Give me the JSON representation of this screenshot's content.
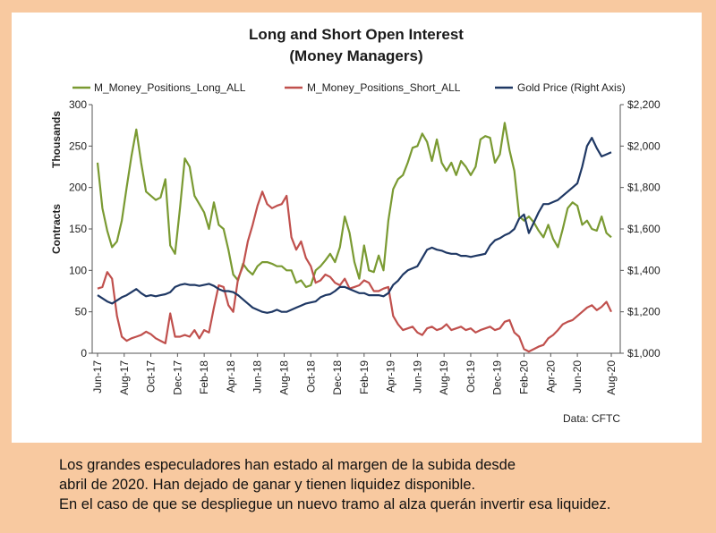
{
  "chart_data": {
    "type": "line",
    "title_line1": "Long and Short Open Interest",
    "title_line2": "(Money Managers)",
    "source": "Data: CFTC",
    "ylabel_left": "Contracts",
    "ylabel_left_units": "Thousands",
    "ylim_left": [
      0,
      300
    ],
    "ylim_right": [
      1000,
      2200
    ],
    "yticks_left": [
      "0",
      "50",
      "100",
      "150",
      "200",
      "250",
      "300"
    ],
    "yticks_right": [
      "$1,000",
      "$1,200",
      "$1,400",
      "$1,600",
      "$1,800",
      "$2,000",
      "$2,200"
    ],
    "x_start": "Jun-17",
    "x_interval_weeks": 2,
    "xtick_labels": [
      "Jun-17",
      "Aug-17",
      "Oct-17",
      "Dec-17",
      "Feb-18",
      "Apr-18",
      "Jun-18",
      "Aug-18",
      "Oct-18",
      "Dec-18",
      "Feb-19",
      "Apr-19",
      "Jun-19",
      "Aug-19",
      "Oct-19",
      "Dec-19",
      "Feb-20",
      "Apr-20",
      "Jun-20",
      "Aug-20"
    ],
    "series": [
      {
        "name": "M_Money_Positions_Long_ALL",
        "color": "#7a9a32",
        "axis": "left",
        "values": [
          230,
          175,
          148,
          128,
          135,
          160,
          200,
          238,
          270,
          230,
          195,
          190,
          185,
          188,
          210,
          130,
          120,
          175,
          235,
          225,
          190,
          180,
          170,
          150,
          182,
          155,
          150,
          125,
          95,
          88,
          108,
          100,
          95,
          105,
          110,
          110,
          108,
          105,
          105,
          100,
          100,
          85,
          88,
          80,
          82,
          100,
          105,
          112,
          120,
          110,
          128,
          165,
          145,
          110,
          90,
          130,
          100,
          98,
          118,
          100,
          160,
          198,
          210,
          215,
          230,
          248,
          250,
          265,
          255,
          232,
          258,
          230,
          220,
          230,
          215,
          232,
          225,
          215,
          225,
          258,
          262,
          260,
          230,
          240,
          278,
          245,
          220,
          165,
          160,
          165,
          158,
          148,
          140,
          155,
          138,
          128,
          150,
          175,
          182,
          178,
          155,
          160,
          150,
          148,
          165,
          145,
          140
        ],
        "gaps_note": "values sampled every two weeks from Jun-17"
      },
      {
        "name": "M_Money_Positions_Short_ALL",
        "color": "#c0504d",
        "axis": "left",
        "values": [
          78,
          80,
          98,
          90,
          45,
          20,
          15,
          18,
          20,
          22,
          26,
          23,
          18,
          15,
          12,
          48,
          20,
          20,
          22,
          20,
          28,
          18,
          28,
          25,
          55,
          82,
          80,
          58,
          50,
          90,
          105,
          135,
          155,
          178,
          195,
          180,
          175,
          178,
          180,
          190,
          140,
          125,
          135,
          115,
          105,
          85,
          88,
          95,
          92,
          85,
          82,
          90,
          78,
          80,
          82,
          88,
          85,
          75,
          75,
          78,
          80,
          45,
          35,
          28,
          30,
          32,
          25,
          22,
          30,
          32,
          28,
          30,
          35,
          28,
          30,
          32,
          28,
          30,
          25,
          28,
          30,
          32,
          28,
          30,
          38,
          40,
          25,
          20,
          5,
          2,
          5,
          8,
          10,
          18,
          22,
          28,
          35,
          38,
          40,
          45,
          50,
          55,
          58,
          52,
          56,
          62,
          50
        ]
      },
      {
        "name": "Gold Price (Right Axis)",
        "color": "#1f3864",
        "axis": "right",
        "values": [
          1280,
          1265,
          1250,
          1240,
          1255,
          1270,
          1280,
          1295,
          1310,
          1290,
          1275,
          1280,
          1275,
          1280,
          1285,
          1295,
          1320,
          1330,
          1335,
          1330,
          1330,
          1325,
          1330,
          1335,
          1325,
          1310,
          1300,
          1300,
          1295,
          1280,
          1260,
          1240,
          1220,
          1210,
          1200,
          1195,
          1200,
          1210,
          1200,
          1200,
          1210,
          1220,
          1230,
          1240,
          1245,
          1250,
          1270,
          1280,
          1285,
          1300,
          1320,
          1320,
          1310,
          1300,
          1290,
          1290,
          1280,
          1280,
          1280,
          1275,
          1290,
          1330,
          1350,
          1380,
          1400,
          1410,
          1420,
          1460,
          1500,
          1510,
          1500,
          1495,
          1485,
          1480,
          1480,
          1470,
          1470,
          1465,
          1470,
          1475,
          1480,
          1520,
          1545,
          1555,
          1570,
          1580,
          1600,
          1650,
          1670,
          1580,
          1630,
          1680,
          1720,
          1720,
          1730,
          1740,
          1760,
          1780,
          1800,
          1820,
          1900,
          2000,
          2040,
          1990,
          1950,
          1960,
          1970
        ]
      }
    ]
  },
  "caption": {
    "line1": "Los grandes especuladores han estado al margen de la subida desde",
    "line2": "abril de 2020. Han dejado de ganar y tienen liquidez disponible.",
    "line3": "En el caso de que se despliegue un nuevo tramo al alza querán invertir esa liquidez."
  }
}
